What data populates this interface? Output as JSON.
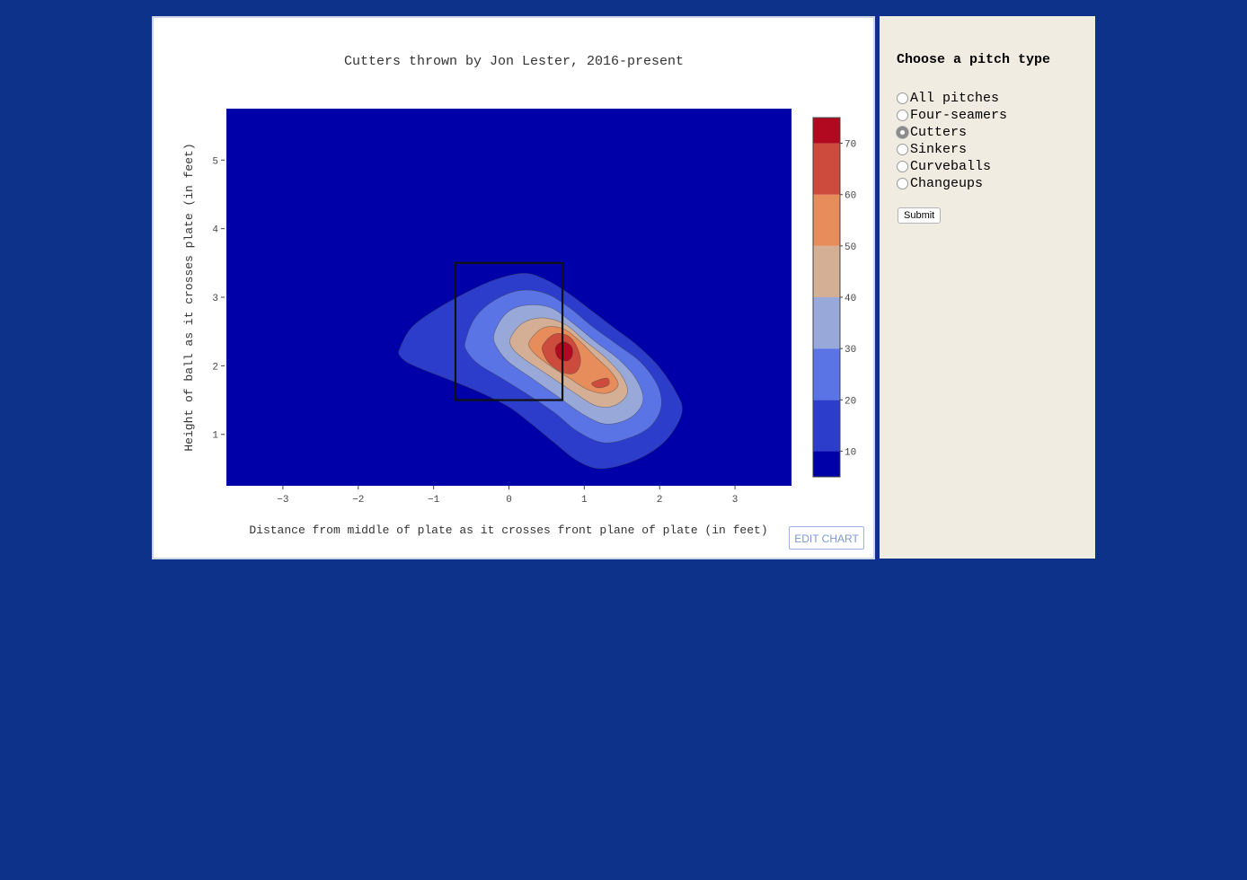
{
  "sidebar": {
    "title": "Choose a pitch type",
    "options": [
      {
        "label": "All pitches",
        "selected": false
      },
      {
        "label": "Four-seamers",
        "selected": false
      },
      {
        "label": "Cutters",
        "selected": true
      },
      {
        "label": "Sinkers",
        "selected": false
      },
      {
        "label": "Curveballs",
        "selected": false
      },
      {
        "label": "Changeups",
        "selected": false
      }
    ],
    "submit_label": "Submit"
  },
  "edit_chart_label": "EDIT CHART",
  "chart_data": {
    "type": "heatmap",
    "subtype": "contour",
    "title": "Cutters thrown by Jon Lester, 2016-present",
    "xlabel": "Distance from middle of plate as it crosses front plane of plate (in feet)",
    "ylabel": "Height of ball as it crosses plate (in feet)",
    "xlim": [
      -3.75,
      3.75
    ],
    "ylim": [
      0.25,
      5.75
    ],
    "xticks": [
      -3,
      -2,
      -1,
      0,
      1,
      2,
      3
    ],
    "yticks": [
      1,
      2,
      3,
      4,
      5
    ],
    "colorbar": {
      "min": 5,
      "max": 75,
      "ticks": [
        10,
        20,
        30,
        40,
        50,
        60,
        70
      ],
      "levels": [
        {
          "from": 5,
          "to": 10,
          "color": "#0000a8"
        },
        {
          "from": 10,
          "to": 20,
          "color": "#2c3dcc"
        },
        {
          "from": 20,
          "to": 30,
          "color": "#5a74e6"
        },
        {
          "from": 30,
          "to": 40,
          "color": "#98a9d9"
        },
        {
          "from": 40,
          "to": 50,
          "color": "#d4af95"
        },
        {
          "from": 50,
          "to": 60,
          "color": "#e68d5b"
        },
        {
          "from": 60,
          "to": 70,
          "color": "#cd4b3d"
        },
        {
          "from": 70,
          "to": 75,
          "color": "#b10a20"
        }
      ]
    },
    "strike_zone": {
      "x": [
        -0.71,
        0.71
      ],
      "y": [
        1.5,
        3.5
      ]
    },
    "contours": [
      {
        "level": 10,
        "points": [
          [
            -1.45,
            2.25
          ],
          [
            -1.3,
            2.55
          ],
          [
            -1.0,
            2.8
          ],
          [
            -0.6,
            3.05
          ],
          [
            -0.2,
            3.25
          ],
          [
            0.2,
            3.35
          ],
          [
            0.5,
            3.25
          ],
          [
            0.8,
            3.05
          ],
          [
            1.1,
            2.8
          ],
          [
            1.4,
            2.55
          ],
          [
            1.7,
            2.3
          ],
          [
            1.98,
            2.0
          ],
          [
            2.2,
            1.65
          ],
          [
            2.3,
            1.35
          ],
          [
            2.15,
            1.0
          ],
          [
            1.9,
            0.75
          ],
          [
            1.55,
            0.57
          ],
          [
            1.2,
            0.5
          ],
          [
            0.9,
            0.62
          ],
          [
            0.6,
            0.88
          ],
          [
            0.3,
            1.15
          ],
          [
            0.0,
            1.4
          ],
          [
            -0.4,
            1.62
          ],
          [
            -0.8,
            1.8
          ],
          [
            -1.15,
            1.95
          ],
          [
            -1.35,
            2.05
          ],
          [
            -1.45,
            2.15
          ]
        ]
      },
      {
        "level": 20,
        "points": [
          [
            -0.58,
            2.35
          ],
          [
            -0.45,
            2.7
          ],
          [
            -0.2,
            2.95
          ],
          [
            0.15,
            3.1
          ],
          [
            0.5,
            3.05
          ],
          [
            0.8,
            2.85
          ],
          [
            1.1,
            2.58
          ],
          [
            1.45,
            2.3
          ],
          [
            1.75,
            2.05
          ],
          [
            1.97,
            1.72
          ],
          [
            2.02,
            1.4
          ],
          [
            1.88,
            1.12
          ],
          [
            1.6,
            0.95
          ],
          [
            1.25,
            0.88
          ],
          [
            0.9,
            1.05
          ],
          [
            0.6,
            1.32
          ],
          [
            0.25,
            1.58
          ],
          [
            -0.1,
            1.82
          ],
          [
            -0.4,
            2.02
          ],
          [
            -0.55,
            2.2
          ]
        ]
      },
      {
        "level": 30,
        "points": [
          [
            -0.2,
            2.45
          ],
          [
            -0.05,
            2.75
          ],
          [
            0.2,
            2.88
          ],
          [
            0.55,
            2.85
          ],
          [
            0.85,
            2.62
          ],
          [
            1.15,
            2.35
          ],
          [
            1.45,
            2.1
          ],
          [
            1.68,
            1.82
          ],
          [
            1.78,
            1.5
          ],
          [
            1.62,
            1.25
          ],
          [
            1.3,
            1.15
          ],
          [
            1.0,
            1.28
          ],
          [
            0.65,
            1.55
          ],
          [
            0.3,
            1.82
          ],
          [
            0.0,
            2.05
          ],
          [
            -0.15,
            2.25
          ]
        ]
      },
      {
        "level": 40,
        "points": [
          [
            0.02,
            2.4
          ],
          [
            0.18,
            2.62
          ],
          [
            0.45,
            2.7
          ],
          [
            0.75,
            2.6
          ],
          [
            1.0,
            2.37
          ],
          [
            1.28,
            2.12
          ],
          [
            1.5,
            1.85
          ],
          [
            1.57,
            1.6
          ],
          [
            1.4,
            1.42
          ],
          [
            1.15,
            1.42
          ],
          [
            0.85,
            1.62
          ],
          [
            0.5,
            1.88
          ],
          [
            0.2,
            2.1
          ],
          [
            0.05,
            2.25
          ]
        ]
      },
      {
        "level": 50,
        "points": [
          [
            0.27,
            2.35
          ],
          [
            0.45,
            2.55
          ],
          [
            0.7,
            2.55
          ],
          [
            0.92,
            2.38
          ],
          [
            1.15,
            2.13
          ],
          [
            1.35,
            1.92
          ],
          [
            1.45,
            1.72
          ],
          [
            1.3,
            1.6
          ],
          [
            1.05,
            1.65
          ],
          [
            0.8,
            1.82
          ],
          [
            0.52,
            2.02
          ],
          [
            0.32,
            2.2
          ]
        ]
      },
      {
        "level": 60,
        "points": [
          [
            0.45,
            2.3
          ],
          [
            0.6,
            2.46
          ],
          [
            0.78,
            2.44
          ],
          [
            0.9,
            2.28
          ],
          [
            0.95,
            2.06
          ],
          [
            0.88,
            1.9
          ],
          [
            0.72,
            1.9
          ],
          [
            0.55,
            2.02
          ],
          [
            0.46,
            2.17
          ]
        ]
      },
      {
        "level": 60,
        "points": [
          [
            1.1,
            1.75
          ],
          [
            1.3,
            1.82
          ],
          [
            1.32,
            1.72
          ],
          [
            1.18,
            1.68
          ]
        ]
      },
      {
        "level": 70,
        "points": [
          [
            0.62,
            2.27
          ],
          [
            0.72,
            2.35
          ],
          [
            0.83,
            2.28
          ],
          [
            0.84,
            2.15
          ],
          [
            0.77,
            2.07
          ],
          [
            0.65,
            2.12
          ]
        ]
      }
    ]
  }
}
